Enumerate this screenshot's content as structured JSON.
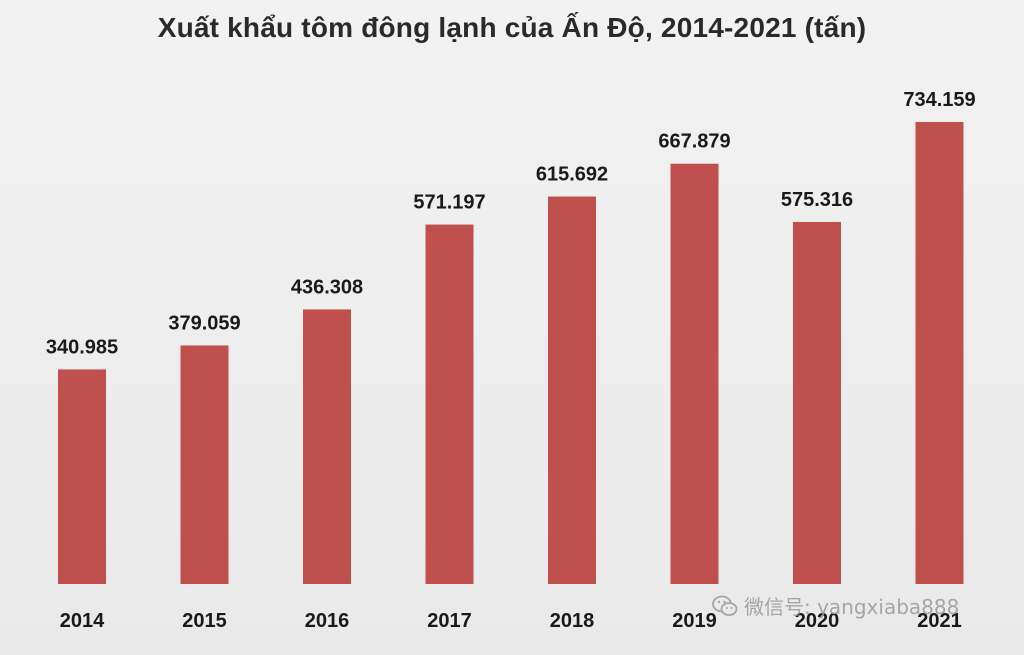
{
  "chart_data": {
    "type": "bar",
    "title": "Xuất khẩu tôm đông lạnh của Ấn Độ, 2014-2021 (tấn)",
    "xlabel": "",
    "ylabel": "",
    "categories": [
      "2014",
      "2015",
      "2016",
      "2017",
      "2018",
      "2019",
      "2020",
      "2021"
    ],
    "values": [
      340985,
      379059,
      436308,
      571197,
      615692,
      667879,
      575316,
      734159
    ],
    "value_labels": [
      "340.985",
      "379.059",
      "436.308",
      "571.197",
      "615.692",
      "667.879",
      "575.316",
      "734.159"
    ],
    "ylim": [
      0,
      734159
    ],
    "grid": false,
    "legend": "none",
    "bar_color": "#c0504d"
  },
  "watermark": {
    "text": "微信号: yangxiaba888",
    "icon": "wechat-icon"
  }
}
